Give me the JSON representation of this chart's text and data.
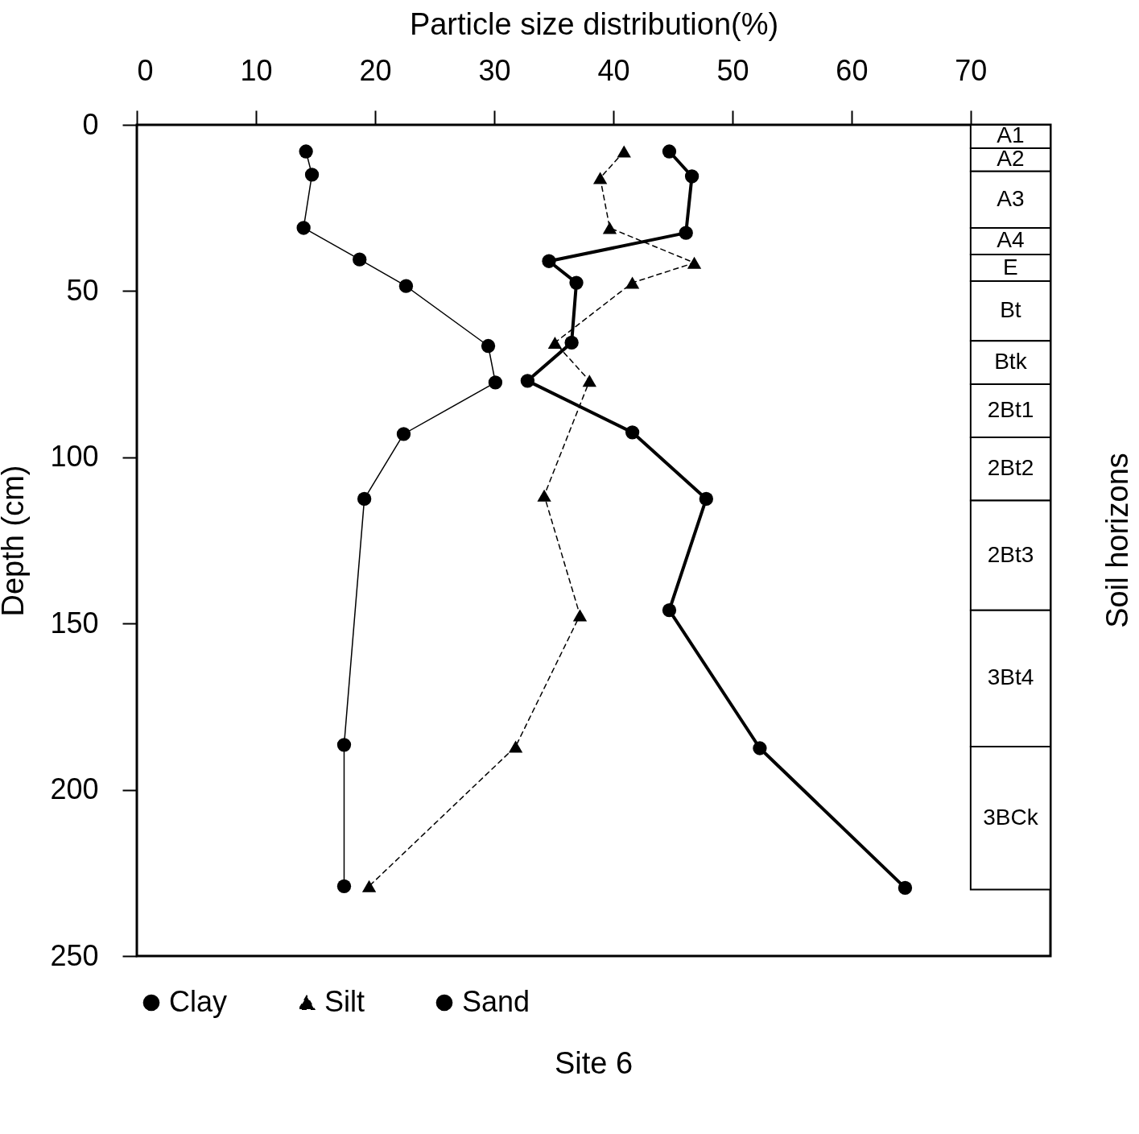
{
  "chart_data": {
    "type": "line",
    "title": "Site 6",
    "xlabel": "Particle size distribution(%)",
    "ylabel": "Depth (cm)",
    "y2label": "Soil horizons",
    "xlim": [
      0,
      76.7
    ],
    "xticks": [
      0,
      10,
      20,
      30,
      40,
      50,
      60,
      70
    ],
    "ylim": [
      250,
      0
    ],
    "yticks": [
      0,
      50,
      100,
      150,
      200,
      250
    ],
    "grid": false,
    "legend": "bottom",
    "series": [
      {
        "name": "Clay",
        "color": "#000000",
        "marker": "circle",
        "line_style": "solid",
        "x": [
          14.2,
          14.7,
          14.0,
          18.7,
          22.6,
          29.5,
          30.1,
          22.4,
          19.1,
          17.4,
          17.4
        ],
        "values": [
          8,
          15,
          31,
          40.5,
          48.5,
          66.5,
          77.5,
          93,
          112.5,
          186.5,
          229
        ]
      },
      {
        "name": "Silt",
        "color": "#000000",
        "marker": "triangle",
        "line_style": "dashed",
        "x": [
          40.9,
          38.9,
          39.7,
          46.8,
          41.6,
          35.1,
          38.0,
          34.2,
          37.2,
          31.8,
          19.5
        ],
        "values": [
          8,
          16,
          31,
          41.5,
          47.5,
          65.5,
          77,
          111.5,
          147.5,
          187,
          229
        ]
      },
      {
        "name": "Sand",
        "color": "#000000",
        "marker": "circle",
        "line_style": "solid",
        "x": [
          44.7,
          46.6,
          46.1,
          34.6,
          36.9,
          36.5,
          32.8,
          41.6,
          47.8,
          44.7,
          52.3,
          64.5
        ],
        "values": [
          8,
          15.5,
          32.5,
          41,
          47.5,
          65.5,
          77,
          92.5,
          112.5,
          146,
          187.5,
          229.5
        ]
      }
    ],
    "bands": [
      {
        "axis": "y",
        "from": 0,
        "to": 7,
        "label": "A1"
      },
      {
        "axis": "y",
        "from": 7,
        "to": 14,
        "label": "A2"
      },
      {
        "axis": "y",
        "from": 14,
        "to": 31,
        "label": "A3"
      },
      {
        "axis": "y",
        "from": 31,
        "to": 39,
        "label": "A4"
      },
      {
        "axis": "y",
        "from": 39,
        "to": 47,
        "label": "E"
      },
      {
        "axis": "y",
        "from": 47,
        "to": 65,
        "label": "Bt"
      },
      {
        "axis": "y",
        "from": 65,
        "to": 78,
        "label": "Btk"
      },
      {
        "axis": "y",
        "from": 78,
        "to": 94,
        "label": "2Bt1"
      },
      {
        "axis": "y",
        "from": 94,
        "to": 113,
        "label": "2Bt2"
      },
      {
        "axis": "y",
        "from": 113,
        "to": 146,
        "label": "2Bt3"
      },
      {
        "axis": "y",
        "from": 146,
        "to": 187,
        "label": "3Bt4"
      },
      {
        "axis": "y",
        "from": 187,
        "to": 230,
        "label": "3BCk"
      }
    ]
  }
}
